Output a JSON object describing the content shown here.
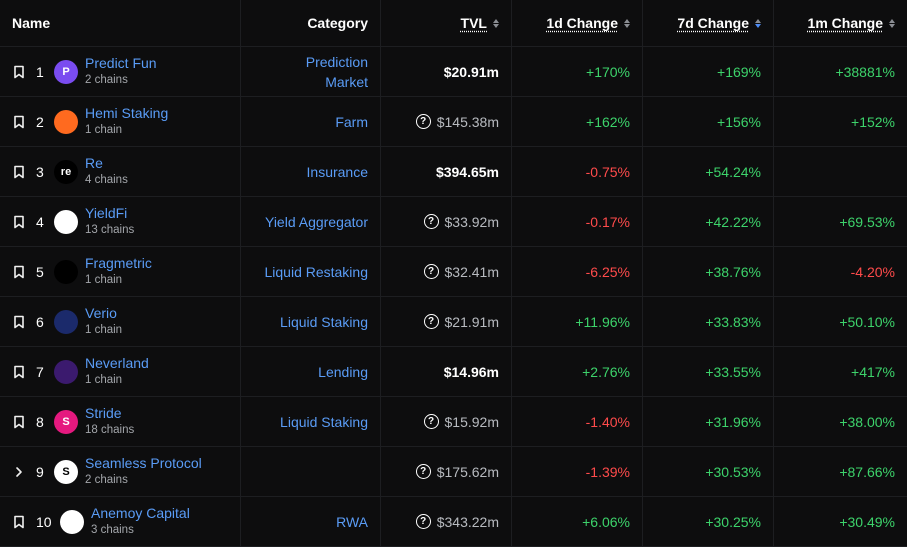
{
  "columns": {
    "name": "Name",
    "category": "Category",
    "tvl": "TVL",
    "d1": "1d Change",
    "d7": "7d Change",
    "m1": "1m Change"
  },
  "colors": {
    "link": "#5a9cf6",
    "positive": "#3dd36b",
    "negative": "#ff4b4b",
    "background": "#0d0d0e"
  },
  "rows": [
    {
      "rank": "1",
      "name": "Predict Fun",
      "chains": "2 chains",
      "category": "Prediction Market",
      "tvl": "$20.91m",
      "tvl_unknown": false,
      "d1": "+170%",
      "d7": "+169%",
      "m1": "+38881%",
      "icon": "bookmark-icon",
      "logo_color": "#7a4cf0",
      "logo_text": "P"
    },
    {
      "rank": "2",
      "name": "Hemi Staking",
      "chains": "1 chain",
      "category": "Farm",
      "tvl": "$145.38m",
      "tvl_unknown": true,
      "d1": "+162%",
      "d7": "+156%",
      "m1": "+152%",
      "icon": "bookmark-icon",
      "logo_color": "#ff6a1f",
      "logo_text": ""
    },
    {
      "rank": "3",
      "name": "Re",
      "chains": "4 chains",
      "category": "Insurance",
      "tvl": "$394.65m",
      "tvl_unknown": false,
      "d1": "-0.75%",
      "d7": "+54.24%",
      "m1": "",
      "icon": "bookmark-icon",
      "logo_color": "#000000",
      "logo_text": "re"
    },
    {
      "rank": "4",
      "name": "YieldFi",
      "chains": "13 chains",
      "category": "Yield Aggregator",
      "tvl": "$33.92m",
      "tvl_unknown": true,
      "d1": "-0.17%",
      "d7": "+42.22%",
      "m1": "+69.53%",
      "icon": "bookmark-icon",
      "logo_color": "#ffffff",
      "logo_text": ""
    },
    {
      "rank": "5",
      "name": "Fragmetric",
      "chains": "1 chain",
      "category": "Liquid Restaking",
      "tvl": "$32.41m",
      "tvl_unknown": true,
      "d1": "-6.25%",
      "d7": "+38.76%",
      "m1": "-4.20%",
      "icon": "bookmark-icon",
      "logo_color": "#000000",
      "logo_text": ""
    },
    {
      "rank": "6",
      "name": "Verio",
      "chains": "1 chain",
      "category": "Liquid Staking",
      "tvl": "$21.91m",
      "tvl_unknown": true,
      "d1": "+11.96%",
      "d7": "+33.83%",
      "m1": "+50.10%",
      "icon": "bookmark-icon",
      "logo_color": "#1b2a6b",
      "logo_text": ""
    },
    {
      "rank": "7",
      "name": "Neverland",
      "chains": "1 chain",
      "category": "Lending",
      "tvl": "$14.96m",
      "tvl_unknown": false,
      "d1": "+2.76%",
      "d7": "+33.55%",
      "m1": "+417%",
      "icon": "bookmark-icon",
      "logo_color": "#3b1a6e",
      "logo_text": ""
    },
    {
      "rank": "8",
      "name": "Stride",
      "chains": "18 chains",
      "category": "Liquid Staking",
      "tvl": "$15.92m",
      "tvl_unknown": true,
      "d1": "-1.40%",
      "d7": "+31.96%",
      "m1": "+38.00%",
      "icon": "bookmark-icon",
      "logo_color": "#e5197f",
      "logo_text": "S"
    },
    {
      "rank": "9",
      "name": "Seamless Protocol",
      "chains": "2 chains",
      "category": "",
      "tvl": "$175.62m",
      "tvl_unknown": true,
      "d1": "-1.39%",
      "d7": "+30.53%",
      "m1": "+87.66%",
      "icon": "chevron-right-icon",
      "logo_color": "#ffffff",
      "logo_text": "S"
    },
    {
      "rank": "10",
      "name": "Anemoy Capital",
      "chains": "3 chains",
      "category": "RWA",
      "tvl": "$343.22m",
      "tvl_unknown": true,
      "d1": "+6.06%",
      "d7": "+30.25%",
      "m1": "+30.49%",
      "icon": "bookmark-icon",
      "logo_color": "#ffffff",
      "logo_text": ""
    }
  ]
}
